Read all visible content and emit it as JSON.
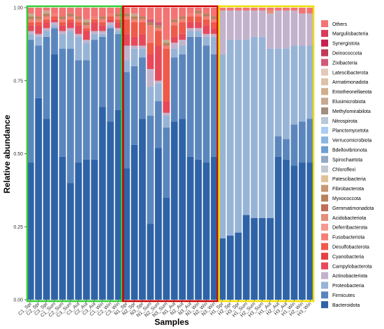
{
  "chart_data": {
    "type": "bar",
    "stacked": true,
    "orientation": "vertical",
    "xlabel": "Samples",
    "ylabel": "Relative abundance",
    "ylim": [
      0,
      1
    ],
    "yticks": [
      "0.00",
      "0.25",
      "0.50",
      "0.75",
      "1.00"
    ],
    "grid": false,
    "legend_position": "right",
    "groups": [
      {
        "name": "C",
        "outline_color": "#33cc33",
        "start": 0,
        "end": 12
      },
      {
        "name": "N",
        "outline_color": "#cc0000",
        "start": 12,
        "end": 24
      },
      {
        "name": "H",
        "outline_color": "#eedd00",
        "start": 24,
        "end": 36
      }
    ],
    "categories": [
      "C1_Spr",
      "C2_Spr",
      "C3_Spr",
      "C1_Sum",
      "C2_Sum",
      "C3_Sum",
      "C1_Aut",
      "C2_Aut",
      "C3_Aut",
      "C1_Win",
      "C2_Win",
      "C3_Win",
      "N1_Spr",
      "N2_Spr",
      "N3_Spr",
      "N1_Sum",
      "N2_Sum",
      "N3_Sum",
      "N1_Aut",
      "N2_Aut",
      "N3_Aut",
      "N1_Win",
      "N2_Win",
      "N3_Win",
      "H1_Spr",
      "H2_Spr",
      "H3_Spr",
      "H1_Sum",
      "H2_Sum",
      "H3_Sum",
      "H1_Aut",
      "H2_Aut",
      "H3_Aut",
      "H1_Win",
      "H2_Win",
      "H3_Win"
    ],
    "series_colors": {
      "Bacteroidota": "#2f63a8",
      "Firmicutes": "#5b86bd",
      "Proteobacteria": "#97b4d6",
      "Actinobacteriota": "#c3b2cc",
      "Campylobacterota": "#e8495a",
      "Cyanobacteria": "#e64040",
      "Desulfobacterota": "#ef5a4a",
      "Fusobacteriota": "#f48075",
      "Deferribacterota": "#f59a8e",
      "Acidobacteriota": "#e28f7a",
      "Gemmatimonadota": "#c06e55",
      "Myxococcota": "#b8825f",
      "Fibrobacterota": "#c89872",
      "Patescibacteria": "#e2c197",
      "Chloroflexi": "#c2c8d0",
      "Spirochaetota": "#93a9c4",
      "Bdellovibrionota": "#6f9fd2",
      "Verrucomicrobiota": "#8bb5e2",
      "Planctomycetota": "#a9cdf0",
      "Nitrospirota": "#b8c8d8",
      "Methylomirabilota": "#a08e80",
      "Elusimicrobiota": "#c8a890",
      "Entotheonellaeota": "#d0ae8c",
      "Armatimonadota": "#dcc0a8",
      "Latescibacterota": "#e4c8b8",
      "Zixibacteria": "#d05a78",
      "Deinococcota": "#c03a58",
      "Synergistota": "#c82050",
      "Margulisbacteria": "#d83c58",
      "Others": "#f47373"
    },
    "legend": [
      "Others",
      "Margulisbacteria",
      "Synergistota",
      "Deinococcota",
      "Zixibacteria",
      "Latescibacterota",
      "Armatimonadota",
      "Entotheonellaeota",
      "Elusimicrobiota",
      "Methylomirabilota",
      "Nitrospirota",
      "Planctomycetota",
      "Verrucomicrobiota",
      "Bdellovibrionota",
      "Spirochaetota",
      "Chloroflexi",
      "Patescibacteria",
      "Fibrobacterota",
      "Myxococcota",
      "Gemmatimonadota",
      "Acidobacteriota",
      "Deferribacterota",
      "Fusobacteriota",
      "Desulfobacterota",
      "Cyanobacteria",
      "Campylobacterota",
      "Actinobacteriota",
      "Proteobacteria",
      "Firmicutes",
      "Bacteroidota"
    ],
    "series": [
      {
        "name": "Bacteroidota",
        "values": [
          0.47,
          0.69,
          0.62,
          0.84,
          0.49,
          0.4,
          0.47,
          0.48,
          0.48,
          0.66,
          0.61,
          0.65,
          0.45,
          0.53,
          0.62,
          0.26,
          0.52,
          0.35,
          0.61,
          0.62,
          0.49,
          0.48,
          0.47,
          0.49,
          0.21,
          0.22,
          0.23,
          0.29,
          0.28,
          0.28,
          0.28,
          0.49,
          0.48,
          0.46,
          0.47,
          0.47
        ]
      },
      {
        "name": "Firmicutes",
        "values": [
          0.42,
          0.18,
          0.28,
          0.09,
          0.37,
          0.46,
          0.35,
          0.34,
          0.41,
          0.24,
          0.32,
          0.26,
          0.33,
          0.27,
          0.21,
          0.37,
          0.16,
          0.24,
          0.22,
          0.22,
          0.41,
          0.42,
          0.4,
          0.35,
          0.0,
          0.0,
          0.0,
          0.0,
          0.0,
          0.0,
          0.0,
          0.07,
          0.07,
          0.14,
          0.14,
          0.15
        ]
      },
      {
        "name": "Proteobacteria",
        "values": [
          0.02,
          0.03,
          0.02,
          0.01,
          0.05,
          0.06,
          0.08,
          0.06,
          0.02,
          0.01,
          0.01,
          0.01,
          0.04,
          0.06,
          0.03,
          0.1,
          0.06,
          0.04,
          0.03,
          0.03,
          0.02,
          0.02,
          0.03,
          0.06,
          0.63,
          0.67,
          0.66,
          0.6,
          0.62,
          0.62,
          0.58,
          0.3,
          0.31,
          0.27,
          0.26,
          0.25
        ]
      },
      {
        "name": "Actinobacteriota",
        "values": [
          0.01,
          0.01,
          0.01,
          0.01,
          0.01,
          0.01,
          0.01,
          0.01,
          0.01,
          0.01,
          0.01,
          0.01,
          0.05,
          0.01,
          0.01,
          0.06,
          0.01,
          0.01,
          0.02,
          0.02,
          0.01,
          0.01,
          0.01,
          0.01,
          0.15,
          0.1,
          0.1,
          0.1,
          0.09,
          0.09,
          0.12,
          0.13,
          0.13,
          0.12,
          0.11,
          0.11
        ]
      },
      {
        "name": "Campylobacterota",
        "values": [
          0.02,
          0.03,
          0.02,
          0.01,
          0.02,
          0.02,
          0.03,
          0.03,
          0.03,
          0.02,
          0.01,
          0.02,
          0.04,
          0.03,
          0.04,
          0.05,
          0.12,
          0.04,
          0.02,
          0.02,
          0.02,
          0.02,
          0.03,
          0.02,
          0.0,
          0.0,
          0.0,
          0.0,
          0.0,
          0.0,
          0.0,
          0.0,
          0.0,
          0.0,
          0.0,
          0.0
        ]
      },
      {
        "name": "Desulfobacterota",
        "values": [
          0.01,
          0.01,
          0.01,
          0.01,
          0.01,
          0.01,
          0.01,
          0.01,
          0.01,
          0.01,
          0.01,
          0.01,
          0.05,
          0.05,
          0.04,
          0.04,
          0.05,
          0.18,
          0.04,
          0.04,
          0.02,
          0.02,
          0.02,
          0.02,
          0.0,
          0.0,
          0.0,
          0.0,
          0.0,
          0.0,
          0.0,
          0.0,
          0.0,
          0.0,
          0.0,
          0.0
        ]
      },
      {
        "name": "Fusobacteriota",
        "values": [
          0.01,
          0.01,
          0.01,
          0.01,
          0.01,
          0.01,
          0.01,
          0.01,
          0.01,
          0.01,
          0.01,
          0.01,
          0.01,
          0.01,
          0.01,
          0.06,
          0.01,
          0.01,
          0.01,
          0.01,
          0.01,
          0.01,
          0.01,
          0.01,
          0.0,
          0.0,
          0.0,
          0.0,
          0.0,
          0.0,
          0.0,
          0.0,
          0.0,
          0.0,
          0.0,
          0.0
        ]
      },
      {
        "name": "Acidobacteriota",
        "values": [
          0.0,
          0.0,
          0.0,
          0.0,
          0.0,
          0.0,
          0.0,
          0.0,
          0.0,
          0.0,
          0.0,
          0.0,
          0.0,
          0.0,
          0.0,
          0.0,
          0.0,
          0.0,
          0.0,
          0.0,
          0.0,
          0.0,
          0.0,
          0.0,
          0.0,
          0.0,
          0.0,
          0.0,
          0.0,
          0.0,
          0.01,
          0.0,
          0.0,
          0.0,
          0.0,
          0.0
        ]
      },
      {
        "name": "Myxococcota",
        "values": [
          0.01,
          0.01,
          0.01,
          0.0,
          0.01,
          0.01,
          0.01,
          0.01,
          0.0,
          0.01,
          0.0,
          0.01,
          0.01,
          0.01,
          0.01,
          0.01,
          0.01,
          0.01,
          0.01,
          0.01,
          0.0,
          0.01,
          0.01,
          0.01,
          0.0,
          0.0,
          0.0,
          0.0,
          0.0,
          0.0,
          0.0,
          0.0,
          0.0,
          0.0,
          0.0,
          0.0
        ]
      },
      {
        "name": "Patescibacteria",
        "values": [
          0.0,
          0.0,
          0.0,
          0.0,
          0.0,
          0.0,
          0.0,
          0.0,
          0.0,
          0.0,
          0.0,
          0.0,
          0.0,
          0.0,
          0.0,
          0.0,
          0.0,
          0.0,
          0.0,
          0.0,
          0.0,
          0.0,
          0.0,
          0.0,
          0.0,
          0.0,
          0.0,
          0.0,
          0.0,
          0.0,
          0.0,
          0.0,
          0.0,
          0.0,
          0.0,
          0.0
        ]
      },
      {
        "name": "Spirochaetota",
        "values": [
          0.0,
          0.0,
          0.0,
          0.0,
          0.0,
          0.0,
          0.0,
          0.0,
          0.0,
          0.0,
          0.0,
          0.0,
          0.0,
          0.0,
          0.0,
          0.0,
          0.0,
          0.0,
          0.0,
          0.0,
          0.0,
          0.0,
          0.0,
          0.0,
          0.0,
          0.0,
          0.0,
          0.0,
          0.0,
          0.0,
          0.0,
          0.0,
          0.0,
          0.0,
          0.0,
          0.0
        ]
      },
      {
        "name": "Elusimicrobiota",
        "values": [
          0.01,
          0.0,
          0.01,
          0.0,
          0.0,
          0.0,
          0.0,
          0.01,
          0.0,
          0.0,
          0.0,
          0.0,
          0.0,
          0.01,
          0.0,
          0.0,
          0.0,
          0.01,
          0.0,
          0.0,
          0.0,
          0.0,
          0.0,
          0.0,
          0.0,
          0.0,
          0.0,
          0.0,
          0.0,
          0.0,
          0.0,
          0.0,
          0.0,
          0.0,
          0.0,
          0.0
        ]
      },
      {
        "name": "Zixibacteria",
        "values": [
          0.0,
          0.0,
          0.0,
          0.0,
          0.0,
          0.0,
          0.0,
          0.0,
          0.0,
          0.0,
          0.0,
          0.0,
          0.0,
          0.0,
          0.0,
          0.01,
          0.01,
          0.0,
          0.0,
          0.0,
          0.0,
          0.0,
          0.0,
          0.0,
          0.0,
          0.0,
          0.0,
          0.0,
          0.0,
          0.0,
          0.0,
          0.0,
          0.0,
          0.0,
          0.0,
          0.0
        ]
      },
      {
        "name": "Others",
        "values": [
          0.02,
          0.03,
          0.02,
          0.02,
          0.03,
          0.03,
          0.03,
          0.05,
          0.03,
          0.04,
          0.03,
          0.03,
          0.02,
          0.02,
          0.05,
          0.04,
          0.05,
          0.12,
          0.05,
          0.04,
          0.02,
          0.01,
          0.02,
          0.03,
          0.01,
          0.01,
          0.01,
          0.01,
          0.01,
          0.01,
          0.01,
          0.01,
          0.01,
          0.01,
          0.02,
          0.02
        ]
      }
    ]
  }
}
